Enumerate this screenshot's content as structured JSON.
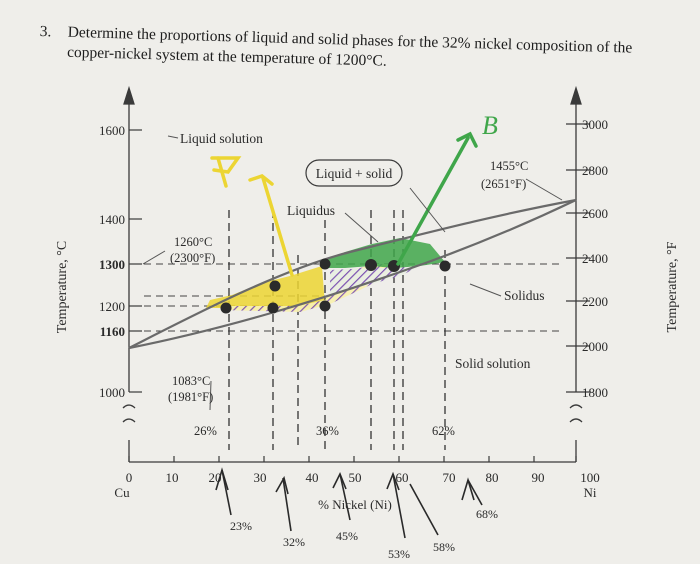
{
  "question": {
    "number": "3.",
    "line1": "Determine the proportions of liquid and solid phases for the 32% nickel composition of the",
    "line2": "copper-nickel system at the temperature of 1200°C."
  },
  "chart_data": {
    "type": "diagram",
    "xlabel": "% Nickel (Ni)",
    "ylabel_left": "Temperature, °C",
    "ylabel_right": "Temperature, °F",
    "x_ticks": [
      "0",
      "10",
      "20",
      "30",
      "40",
      "50",
      "60",
      "70",
      "80",
      "90",
      "100"
    ],
    "x_end_labels": {
      "left": "Cu",
      "right": "Ni"
    },
    "y_ticks_c": [
      "1600",
      "1400",
      "1300",
      "1200",
      "1160",
      "1000"
    ],
    "y_ticks_f": [
      "3000",
      "2800",
      "2600",
      "2400",
      "2200",
      "2000",
      "1800"
    ],
    "liquidus": [
      [
        0,
        1083
      ],
      [
        20,
        1200
      ],
      [
        32,
        1260
      ],
      [
        45,
        1300
      ],
      [
        58,
        1340
      ],
      [
        100,
        1455
      ]
    ],
    "solidus": [
      [
        0,
        1083
      ],
      [
        23,
        1160
      ],
      [
        40,
        1200
      ],
      [
        53,
        1260
      ],
      [
        62,
        1300
      ],
      [
        100,
        1455
      ]
    ],
    "region_labels": {
      "liquid": "Liquid solution",
      "two_phase": "Liquid + solid",
      "liquidus": "Liquidus",
      "solidus": "Solidus",
      "solid": "Solid solution"
    },
    "annotations": {
      "ni_melt_c": "1455°C",
      "ni_melt_f": "(2651°F)",
      "t1260_c": "1260°C",
      "t1260_f": "(2300°F)",
      "cu_melt_c": "1083°C",
      "cu_melt_f": "(1981°F)",
      "c26": "26%",
      "c36": "36%",
      "c62": "62%"
    },
    "handwritten": {
      "p23": "23%",
      "p32": "32%",
      "p45": "45%",
      "p53": "53%",
      "p58": "58%",
      "p68": "68%",
      "letter_b": "B"
    },
    "tie_line_points": [
      [
        20,
        1200
      ],
      [
        32,
        1200
      ],
      [
        40,
        1200
      ],
      [
        32,
        1260
      ],
      [
        53,
        1260
      ],
      [
        45,
        1300
      ],
      [
        58,
        1300
      ],
      [
        62,
        1300
      ]
    ],
    "colors": {
      "yellow": "#ecd533",
      "purple": "#7a4fb0",
      "green": "#3fa64a",
      "ink": "#2a2a2a"
    }
  }
}
